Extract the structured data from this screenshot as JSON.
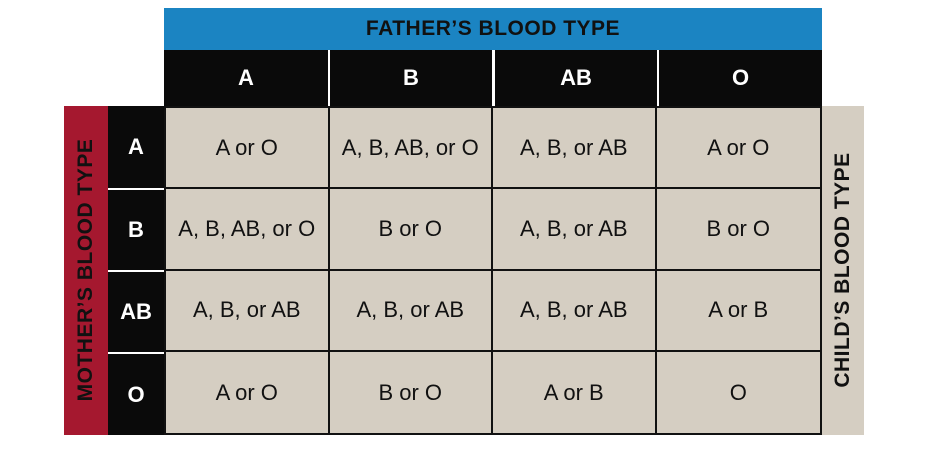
{
  "father_header": "FATHER’S BLOOD TYPE",
  "mother_header": "MOTHER’S BLOOD TYPE",
  "child_header": "CHILD’S BLOOD TYPE",
  "father_types": [
    "A",
    "B",
    "AB",
    "O"
  ],
  "mother_types": [
    "A",
    "B",
    "AB",
    "O"
  ],
  "children": [
    [
      "A or O",
      "A, B, AB, or O",
      "A, B, or AB",
      "A or O"
    ],
    [
      "A, B, AB, or O",
      "B or O",
      "A, B, or AB",
      "B or O"
    ],
    [
      "A, B, or AB",
      "A, B, or AB",
      "A, B, or AB",
      "A or B"
    ],
    [
      "A or O",
      "B or O",
      "A or B",
      "O"
    ]
  ],
  "colors": {
    "father_band": "#1b84c2",
    "mother_band": "#a5182f",
    "child_band": "#d5cec2",
    "header_cells": "#0a0a0a"
  }
}
